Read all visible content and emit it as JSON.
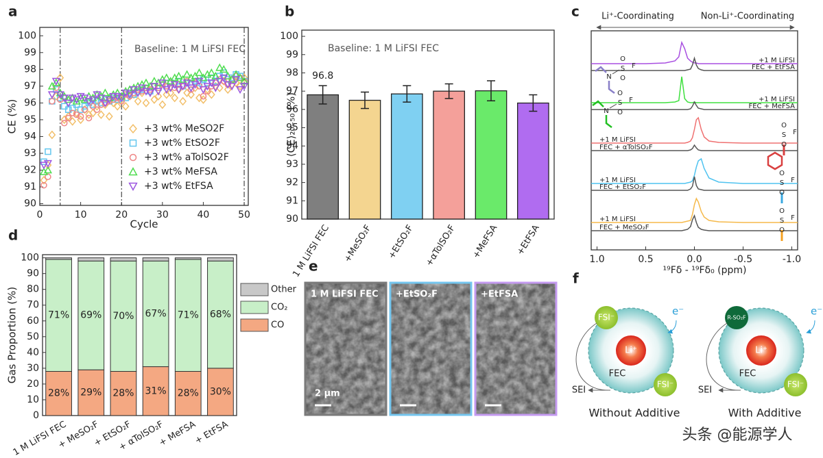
{
  "panel_labels": [
    "a",
    "b",
    "c",
    "d",
    "e",
    "f"
  ],
  "chart_data": [
    {
      "type": "scatter",
      "xlabel": "Cycle",
      "ylabel": "CE (%)",
      "annotation": "Baseline: 1 M LiFSI FEC",
      "xlim": [
        0,
        51
      ],
      "ylim": [
        89.9,
        100.5
      ],
      "xticks": [
        0,
        10,
        20,
        30,
        40,
        50
      ],
      "yticks": [
        90,
        91,
        92,
        93,
        94,
        95,
        96,
        97,
        98,
        99,
        100
      ],
      "vlines": [
        5,
        20,
        50
      ],
      "legend": "lower right",
      "x": [
        1,
        2,
        3,
        4,
        5,
        6,
        7,
        8,
        9,
        10,
        11,
        12,
        13,
        14,
        15,
        16,
        17,
        18,
        19,
        20,
        21,
        22,
        23,
        24,
        25,
        26,
        27,
        28,
        29,
        30,
        31,
        32,
        33,
        34,
        35,
        36,
        37,
        38,
        39,
        40,
        41,
        42,
        43,
        44,
        45,
        46,
        47,
        48,
        49,
        50
      ],
      "series": [
        {
          "name": "+3 wt% MeSO2F",
          "color": "#f2bf6a",
          "marker": "diamond",
          "values": [
            91.4,
            92.3,
            94.1,
            96.4,
            97.5,
            95.0,
            95.2,
            94.9,
            95.4,
            95.0,
            95.6,
            95.3,
            95.4,
            95.8,
            95.3,
            95.9,
            95.2,
            96.0,
            95.8,
            96.2,
            95.8,
            96.4,
            96.5,
            96.1,
            96.6,
            96.0,
            96.7,
            96.2,
            96.4,
            95.9,
            96.5,
            96.6,
            96.3,
            96.8,
            96.1,
            96.6,
            96.5,
            96.9,
            96.3,
            96.2,
            96.8,
            96.5,
            97.0,
            96.9,
            97.3,
            96.8,
            97.1,
            97.2,
            97.0,
            97.5
          ]
        },
        {
          "name": "+3 wt% EtSO2F",
          "color": "#62c6ee",
          "marker": "square",
          "values": [
            92.5,
            93.1,
            96.1,
            96.8,
            96.3,
            95.8,
            95.6,
            95.7,
            95.9,
            95.6,
            95.8,
            96.0,
            95.9,
            96.1,
            96.0,
            96.2,
            96.1,
            96.3,
            96.2,
            96.4,
            96.3,
            96.6,
            96.5,
            96.7,
            96.8,
            96.9,
            96.7,
            97.0,
            96.9,
            97.1,
            97.0,
            97.2,
            97.1,
            97.3,
            97.0,
            97.2,
            97.1,
            97.3,
            97.2,
            97.4,
            97.2,
            97.5,
            97.3,
            97.6,
            97.8,
            97.4,
            97.5,
            97.7,
            97.6,
            97.3
          ]
        },
        {
          "name": "+3 wt% aTolSO2F",
          "color": "#ee8585",
          "marker": "circle",
          "values": [
            91.1,
            91.6,
            96.1,
            96.9,
            96.2,
            94.8,
            95.1,
            95.4,
            95.3,
            95.2,
            95.6,
            95.1,
            95.8,
            95.6,
            95.9,
            96.0,
            96.1,
            96.2,
            96.3,
            96.1,
            96.5,
            96.4,
            96.6,
            96.8,
            96.7,
            96.9,
            96.8,
            97.0,
            96.9,
            97.1,
            97.0,
            97.2,
            96.9,
            97.1,
            97.0,
            97.3,
            96.8,
            97.2,
            97.0,
            96.4,
            96.7,
            97.0,
            97.2,
            97.4,
            97.3,
            97.1,
            97.4,
            97.6,
            97.5,
            97.3
          ]
        },
        {
          "name": "+3 wt% MeFSA",
          "color": "#4fdc4f",
          "marker": "triangle-up",
          "values": [
            91.9,
            92.0,
            97.0,
            97.2,
            96.6,
            96.4,
            96.2,
            96.3,
            96.1,
            96.3,
            96.2,
            96.4,
            96.3,
            96.5,
            96.4,
            96.6,
            96.3,
            96.5,
            96.6,
            96.4,
            96.7,
            96.8,
            96.9,
            97.0,
            97.1,
            97.2,
            97.0,
            97.3,
            97.2,
            97.4,
            97.5,
            97.3,
            97.5,
            97.6,
            97.4,
            97.7,
            97.5,
            97.6,
            97.8,
            97.5,
            97.7,
            97.8,
            97.6,
            98.1,
            98.0,
            97.6,
            97.4,
            97.7,
            97.5,
            97.3
          ]
        },
        {
          "name": "+3 wt% EtFSA",
          "color": "#9b55e0",
          "marker": "triangle-down",
          "values": [
            92.3,
            92.4,
            96.5,
            97.3,
            96.5,
            96.3,
            96.0,
            96.3,
            96.2,
            96.4,
            96.3,
            96.1,
            96.2,
            96.5,
            96.3,
            96.0,
            96.2,
            96.4,
            96.4,
            96.3,
            96.6,
            96.5,
            96.8,
            96.6,
            96.9,
            96.7,
            96.6,
            97.0,
            96.7,
            97.2,
            96.8,
            96.9,
            97.1,
            96.8,
            97.0,
            97.2,
            96.9,
            97.1,
            97.3,
            96.8,
            97.0,
            97.2,
            96.9,
            97.3,
            97.5,
            97.1,
            97.0,
            97.4,
            96.8,
            97.0
          ]
        }
      ]
    },
    {
      "type": "bar",
      "ylabel": "⟨CE⟩₂₀₋₅₀ (%)",
      "annotation": "Baseline: 1 M LiFSI FEC",
      "categories": [
        "1 M LiFSI FEC",
        "+MeSO₂F",
        "+EtSO₂F",
        "+αTolSO₂F",
        "+MeFSA",
        "+EtFSA"
      ],
      "values": [
        96.8,
        96.5,
        96.85,
        97.0,
        97.02,
        96.35
      ],
      "value_labels": [
        "96.8",
        null,
        null,
        null,
        null,
        null
      ],
      "errors": [
        0.5,
        0.45,
        0.45,
        0.4,
        0.55,
        0.45
      ],
      "colors": [
        "#7f7f7f",
        "#f4d590",
        "#7fd0f2",
        "#f4a09a",
        "#6aea6a",
        "#b06cf0"
      ],
      "ylim": [
        90,
        100.34
      ],
      "yticks": [
        90,
        91,
        92,
        93,
        94,
        95,
        96,
        97,
        98,
        99,
        100
      ]
    },
    {
      "type": "line",
      "header": [
        "Li⁺-Coordinating",
        "Non-Li⁺-Coordinating"
      ],
      "xlabel": "¹⁹Fδ - ¹⁹Fδ₀ (ppm)",
      "xlim": [
        1.06,
        -1.06
      ],
      "xticks": [
        {
          "value": 1,
          "label": "1.0"
        },
        0.5,
        {
          "value": 0,
          "label": "0.0"
        },
        -0.5,
        {
          "value": -1,
          "label": "-1.0"
        }
      ],
      "atoms": {
        "N": "N",
        "S": "S",
        "O": "O",
        "F": "F"
      },
      "x": [
        1.06,
        0.5,
        0.3,
        0.2,
        0.16,
        0.13,
        0.1,
        0.07,
        0.04,
        0.02,
        0,
        -0.02,
        -0.04,
        -0.07,
        -0.1,
        -0.15,
        -0.25,
        -0.5,
        -1.06
      ],
      "series": [
        {
          "name": "+1 M LiFSI",
          "color": "#a84ee0",
          "values": [
            0,
            0,
            1,
            4,
            10,
            31,
            22,
            8,
            4,
            2,
            1,
            1,
            0,
            0,
            0,
            0,
            0,
            0,
            0
          ]
        },
        {
          "name": "FEC + EtFSA",
          "color": "#555555",
          "values": [
            0,
            0,
            0,
            0,
            0,
            0,
            0,
            1,
            2,
            8,
            18,
            8,
            3,
            1,
            0,
            0,
            0,
            0,
            0
          ]
        },
        {
          "name": "+1 M LiFSI",
          "color": "#3ee03e",
          "values": [
            0,
            0,
            0,
            1,
            3,
            38,
            6,
            1,
            0,
            0,
            1,
            0,
            0,
            0,
            0,
            0,
            0,
            0,
            0
          ]
        },
        {
          "name": "FEC + MeFSA",
          "color": "#555555",
          "values": [
            0,
            0,
            0,
            0,
            0,
            0,
            0,
            0,
            1,
            5,
            11,
            6,
            2,
            1,
            0,
            0,
            0,
            0,
            0
          ]
        },
        {
          "name": "+1 M LiFSI",
          "color": "#ef7070",
          "values": [
            0,
            0,
            0,
            0,
            0,
            0,
            0,
            1,
            3,
            8,
            20,
            34,
            37,
            20,
            9,
            3,
            1,
            0,
            0
          ]
        },
        {
          "name": "FEC + αTolSO₂F",
          "color": "#555555",
          "values": [
            0,
            0,
            0,
            0,
            0,
            0,
            0,
            0,
            1,
            3,
            8,
            4,
            1,
            0,
            0,
            0,
            0,
            0,
            0
          ]
        },
        {
          "name": "+1 M LiFSI",
          "color": "#4fc3f0",
          "values": [
            0,
            0,
            0,
            0,
            0,
            0,
            0,
            1,
            2,
            4,
            12,
            24,
            33,
            36,
            22,
            8,
            2,
            0,
            0
          ]
        },
        {
          "name": "FEC + EtSO₂F",
          "color": "#555555",
          "values": [
            0,
            0,
            0,
            0,
            0,
            0,
            0,
            0,
            2,
            6,
            20,
            7,
            2,
            1,
            0,
            0,
            0,
            0,
            0
          ]
        },
        {
          "name": "+1 M LiFSI",
          "color": "#f5b94a",
          "values": [
            0,
            0,
            0,
            0,
            0,
            0,
            1,
            2,
            3,
            12,
            26,
            35,
            30,
            16,
            8,
            3,
            1,
            0,
            0
          ]
        },
        {
          "name": "FEC + MeSO₂F",
          "color": "#555555",
          "values": [
            0,
            0,
            0,
            0,
            0,
            0,
            1,
            2,
            6,
            16,
            22,
            12,
            5,
            2,
            1,
            0,
            0,
            0,
            0
          ]
        }
      ]
    },
    {
      "type": "stacked_bar",
      "ylabel": "Gas Proportion (%)",
      "categories": [
        "1 M LiFSI FEC",
        "+ MeSO₂F",
        "+ EtSO₂F",
        "+ αTolSO₂F",
        "+ MeFSA",
        "+ EtFSA"
      ],
      "ylim": [
        0,
        102
      ],
      "yticks": [
        0,
        10,
        20,
        30,
        40,
        50,
        60,
        70,
        80,
        90,
        100
      ],
      "legend": "right",
      "series": [
        {
          "name": "CO",
          "color": "#f4a882",
          "values": [
            28,
            29,
            28,
            31,
            28,
            30
          ],
          "value_labels": [
            "28%",
            "29%",
            "28%",
            "31%",
            "28%",
            "30%"
          ]
        },
        {
          "name": "CO₂",
          "color": "#c8efc8",
          "values": [
            71,
            69,
            70,
            67,
            71,
            68
          ],
          "value_labels": [
            "71%",
            "69%",
            "70%",
            "67%",
            "71%",
            "68%"
          ]
        },
        {
          "name": "Other",
          "color": "#c8c8c8",
          "values": [
            1,
            2,
            2,
            2,
            1,
            2
          ]
        }
      ]
    }
  ],
  "sem": {
    "images": [
      {
        "label": "1 M LiFSI FEC",
        "border": "#7a7a7a"
      },
      {
        "label": "+EtSO₂F",
        "border": "#74c6ef"
      },
      {
        "label": "+EtFSA",
        "border": "#c49af0"
      }
    ],
    "scale_bar": "2 μm"
  },
  "diagram": {
    "panels": [
      {
        "anion": "FSI⁻",
        "electron": "e⁻",
        "cation": "Li⁺",
        "solvent": "FEC",
        "anion2": "FSI⁻",
        "sei": "SEI",
        "caption": "Without Additive"
      },
      {
        "anion": "R-SO₂F",
        "electron": "e⁻",
        "cation": "Li⁺",
        "solvent": "FEC",
        "anion2": "FSI⁻",
        "sei": "SEI",
        "caption": "With Additive"
      }
    ]
  },
  "watermark": "头条 @能源学人"
}
